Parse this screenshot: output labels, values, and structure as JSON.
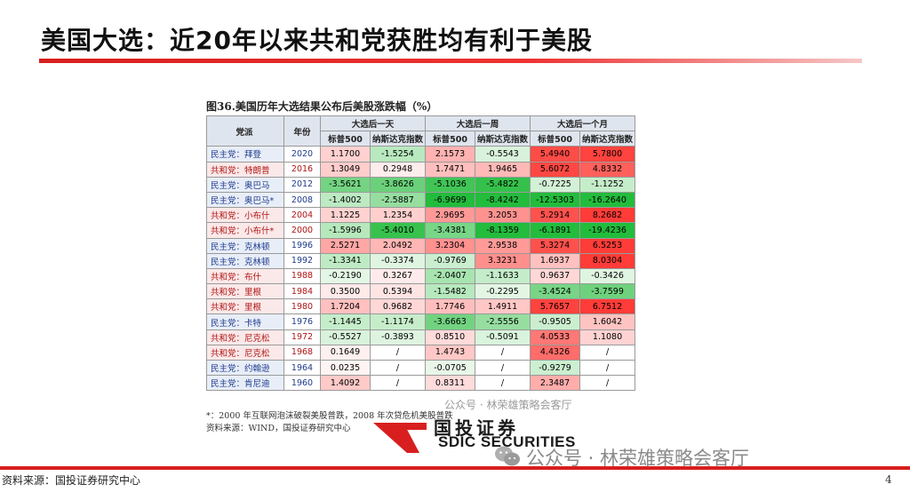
{
  "title": "美国大选：近20年以来共和党获胜均有利于美股",
  "figure_caption": "图36.美国历年大选结果公布后美股涨跌幅（%）",
  "table": {
    "header_party": "党派",
    "header_year": "年份",
    "groups": [
      "大选后一天",
      "大选后一周",
      "大选后一个月"
    ],
    "subheaders": [
      "标普500",
      "纳斯达克指数",
      "标普500",
      "纳斯达克指数",
      "标普500",
      "纳斯达克指数"
    ],
    "rows": [
      {
        "party": "民主党：拜登",
        "p": "d",
        "year": "2020",
        "v": [
          "1.1700",
          "-1.5254",
          "2.1573",
          "-0.5543",
          "5.4940",
          "5.7800"
        ]
      },
      {
        "party": "共和党：特朗普",
        "p": "r",
        "year": "2016",
        "v": [
          "1.3049",
          "0.2948",
          "1.7471",
          "1.9465",
          "5.6072",
          "4.8332"
        ]
      },
      {
        "party": "民主党：奥巴马",
        "p": "d",
        "year": "2012",
        "v": [
          "-3.5621",
          "-3.8626",
          "-5.1036",
          "-5.4822",
          "-0.7225",
          "-1.1252"
        ]
      },
      {
        "party": "民主党：奥巴马*",
        "p": "d",
        "year": "2008",
        "v": [
          "-1.4002",
          "-2.5887",
          "-6.9699",
          "-8.4242",
          "-12.5303",
          "-16.2640"
        ]
      },
      {
        "party": "共和党：小布什",
        "p": "r",
        "year": "2004",
        "v": [
          "1.1225",
          "1.2354",
          "2.9695",
          "3.2053",
          "5.2914",
          "8.2682"
        ]
      },
      {
        "party": "共和党：小布什*",
        "p": "r",
        "year": "2000",
        "v": [
          "-1.5996",
          "-5.4010",
          "-3.4381",
          "-8.1359",
          "-6.1891",
          "-19.4236"
        ]
      },
      {
        "party": "民主党：克林顿",
        "p": "d",
        "year": "1996",
        "v": [
          "2.5271",
          "2.0492",
          "3.2304",
          "2.9538",
          "5.3274",
          "6.5253"
        ]
      },
      {
        "party": "民主党：克林顿",
        "p": "d",
        "year": "1992",
        "v": [
          "-1.3341",
          "-0.3374",
          "-0.9769",
          "3.3231",
          "1.6937",
          "8.0304"
        ]
      },
      {
        "party": "共和党：布什",
        "p": "r",
        "year": "1988",
        "v": [
          "-0.2190",
          "0.3267",
          "-2.0407",
          "-1.1633",
          "0.9637",
          "-0.3426"
        ]
      },
      {
        "party": "共和党：里根",
        "p": "r",
        "year": "1984",
        "v": [
          "0.3500",
          "0.5394",
          "-1.5482",
          "-0.2295",
          "-3.4524",
          "-3.7599"
        ]
      },
      {
        "party": "共和党：里根",
        "p": "r",
        "year": "1980",
        "v": [
          "1.7204",
          "0.9682",
          "1.7746",
          "1.4911",
          "5.7657",
          "6.7512"
        ]
      },
      {
        "party": "民主党：卡特",
        "p": "d",
        "year": "1976",
        "v": [
          "-1.1445",
          "-1.1174",
          "-3.6663",
          "-2.5556",
          "-0.9505",
          "1.6042"
        ]
      },
      {
        "party": "共和党：尼克松",
        "p": "r",
        "year": "1972",
        "v": [
          "-0.5527",
          "-0.3893",
          "0.8510",
          "-0.5091",
          "4.0533",
          "1.1080"
        ]
      },
      {
        "party": "共和党：尼克松",
        "p": "r",
        "year": "1968",
        "v": [
          "0.1649",
          "/",
          "1.4743",
          "/",
          "4.4326",
          "/"
        ]
      },
      {
        "party": "民主党：约翰逊",
        "p": "d",
        "year": "1964",
        "v": [
          "0.0235",
          "/",
          "-0.0705",
          "/",
          "-0.9279",
          "/"
        ]
      },
      {
        "party": "民主党：肯尼迪",
        "p": "d",
        "year": "1960",
        "v": [
          "1.4092",
          "/",
          "0.8311",
          "/",
          "2.3487",
          "/"
        ]
      }
    ]
  },
  "notes": {
    "note1": "*：2000 年互联网泡沫破裂美股普跌，2008 年次贷危机美股普跌",
    "note2": "资料来源：WIND，国投证券研究中心"
  },
  "logo": {
    "cn": "国投证券",
    "en": "SDIC SECURITIES"
  },
  "watermark_small": "公众号 · 林荣雄策略会客厅",
  "watermark_big": "公众号 · 林荣雄策略会客厅",
  "footer": {
    "source": "资料来源：国投证券研究中心",
    "page": "4"
  },
  "colors": {
    "accent_red": "#d81e1e",
    "positive": "#e03030",
    "negative": "#2ea043"
  }
}
